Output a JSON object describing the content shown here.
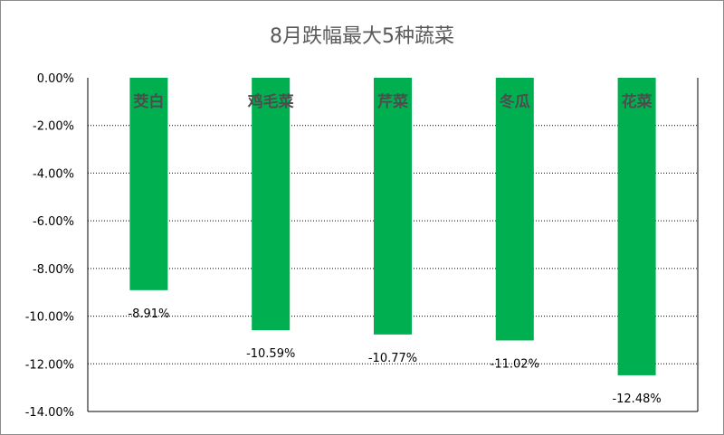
{
  "chart_data": {
    "type": "bar",
    "title": "8月跌幅最大5种蔬菜",
    "categories": [
      "茭白",
      "鸡毛菜",
      "芹菜",
      "冬瓜",
      "花菜"
    ],
    "values": [
      -8.91,
      -10.59,
      -10.77,
      -11.02,
      -12.48
    ],
    "value_labels": [
      "-8.91%",
      "-10.59%",
      "-10.77%",
      "-11.02%",
      "-12.48%"
    ],
    "ylim": [
      -14,
      0
    ],
    "yticks": [
      0,
      -2,
      -4,
      -6,
      -8,
      -10,
      -12,
      -14
    ],
    "ytick_labels": [
      "0.00%",
      "-2.00%",
      "-4.00%",
      "-6.00%",
      "-8.00%",
      "-10.00%",
      "-12.00%",
      "-14.00%"
    ],
    "xlabel": "",
    "ylabel": "",
    "grid": true,
    "legend": "none",
    "bar_color": "#00b050"
  }
}
